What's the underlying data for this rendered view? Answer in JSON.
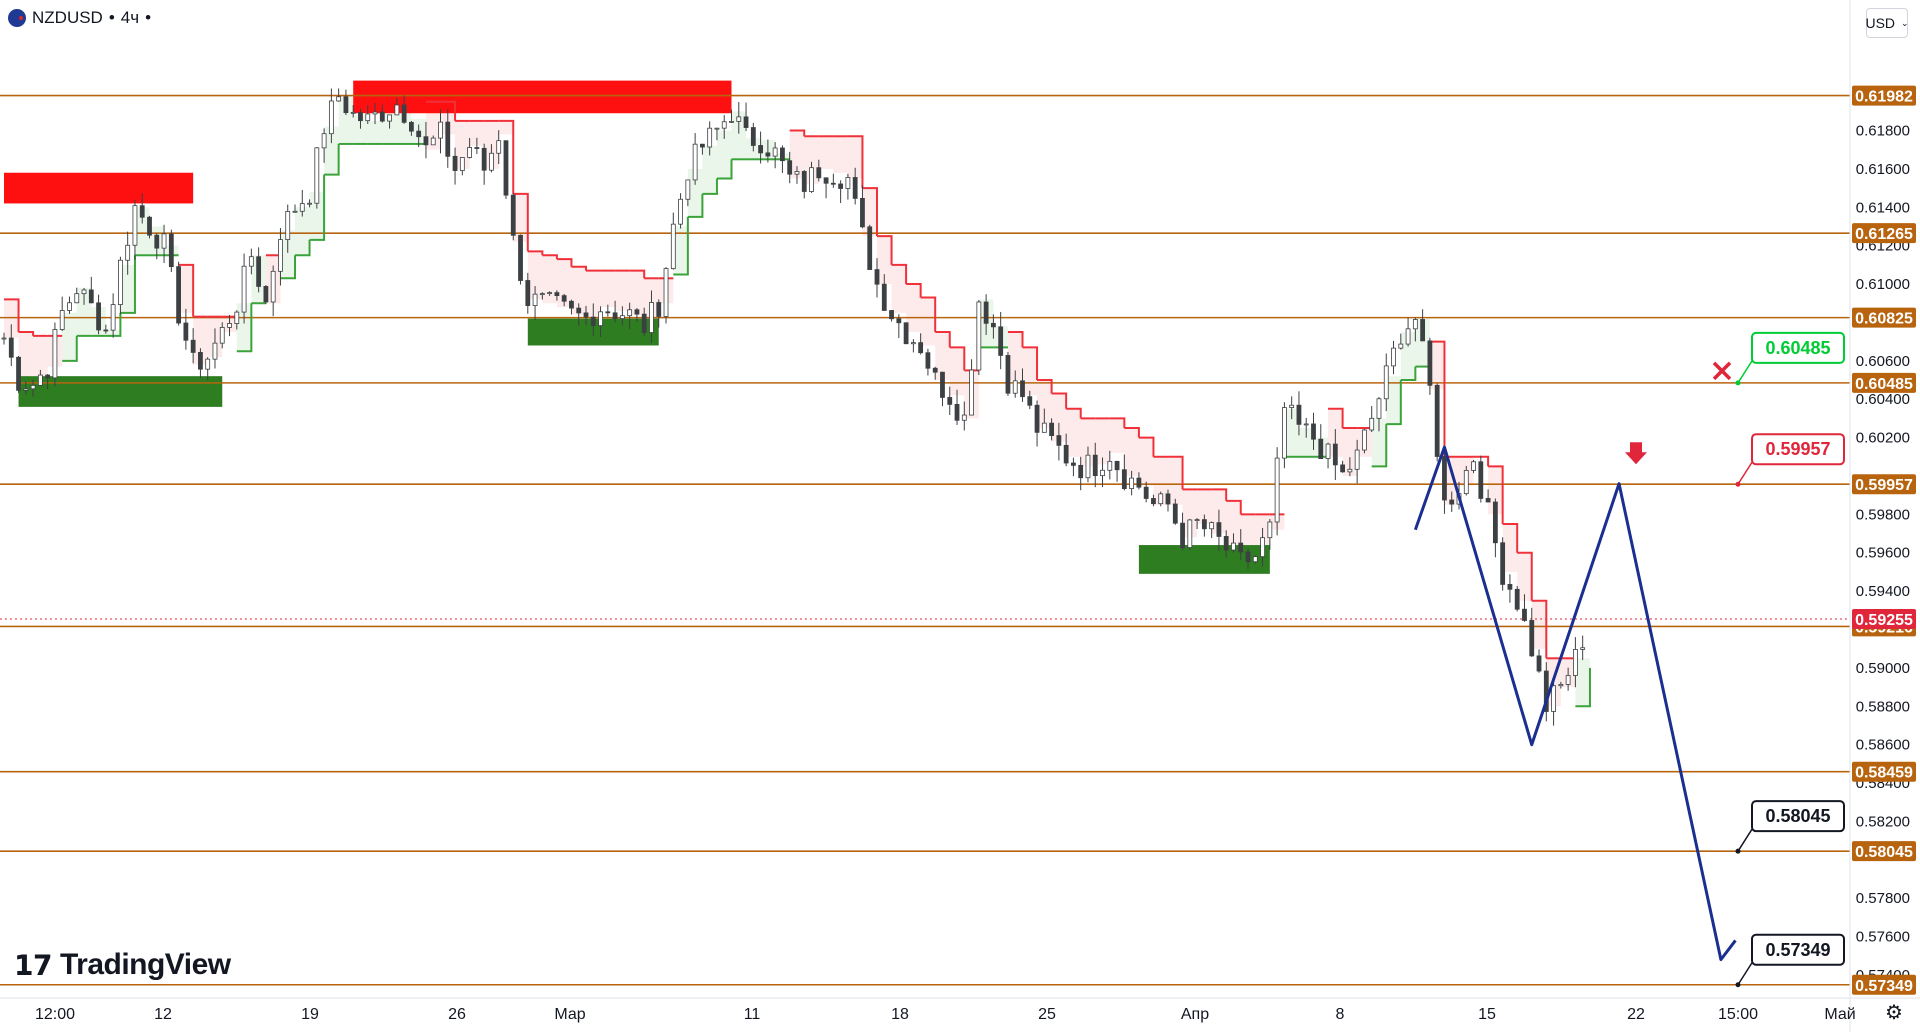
{
  "header": {
    "symbol": "NZDUSD",
    "interval": "4ч",
    "separator": "•"
  },
  "currency_button": "USD",
  "logo_text": "TradingView",
  "colors": {
    "level_line": "#b8640f",
    "level_tag": "#b8640f",
    "trail_up": "#3aa33a",
    "trail_down": "#f0313a",
    "supply_zone": "#ff1010",
    "demand_zone": "#2e7d21",
    "projection": "#1a2f8f",
    "current_price": "#e0263a"
  },
  "chart_data": {
    "type": "candlestick",
    "symbol": "NZDUSD",
    "timeframe": "4ч",
    "ylim": [
      0.5728,
      0.6248
    ],
    "y_ticks": [
      "0.61800",
      "0.61600",
      "0.61400",
      "0.61200",
      "0.61000",
      "0.60600",
      "0.60400",
      "0.60200",
      "0.59800",
      "0.59600",
      "0.59400",
      "0.59000",
      "0.58800",
      "0.58600",
      "0.58400",
      "0.58200",
      "0.57800",
      "0.57600",
      "0.57400"
    ],
    "x_ticks": [
      "12:00",
      "12",
      "19",
      "26",
      "Мар",
      "11",
      "18",
      "25",
      "Апр",
      "8",
      "15",
      "22",
      "15:00",
      "Май"
    ],
    "levels": [
      "0.61982",
      "0.61265",
      "0.60825",
      "0.60485",
      "0.59957",
      "0.59216",
      "0.58459",
      "0.58045",
      "0.57349"
    ],
    "current_price": "0.59255",
    "current_price_value": 0.59255,
    "close_path": [
      0.6072,
      0.605,
      0.6048,
      0.6057,
      0.6085,
      0.6098,
      0.6088,
      0.6076,
      0.611,
      0.614,
      0.613,
      0.612,
      0.6085,
      0.6058,
      0.6062,
      0.6075,
      0.609,
      0.6115,
      0.609,
      0.6128,
      0.614,
      0.6148,
      0.6182,
      0.6198,
      0.6188,
      0.6185,
      0.619,
      0.6194,
      0.6186,
      0.617,
      0.6178,
      0.616,
      0.6172,
      0.616,
      0.6178,
      0.6122,
      0.6092,
      0.609,
      0.6088,
      0.6084,
      0.6082,
      0.6088,
      0.6086,
      0.6084,
      0.6078,
      0.609,
      0.613,
      0.616,
      0.6172,
      0.618,
      0.619,
      0.6176,
      0.6175,
      0.6168,
      0.6155,
      0.6152,
      0.616,
      0.6158,
      0.6155,
      0.6125,
      0.61,
      0.6085,
      0.6075,
      0.6068,
      0.605,
      0.6042,
      0.603,
      0.6092,
      0.6078,
      0.605,
      0.6042,
      0.6025,
      0.6018,
      0.601,
      0.6005,
      0.6006,
      0.6012,
      0.6,
      0.5995,
      0.5985,
      0.5985,
      0.5968,
      0.5975,
      0.597,
      0.5962,
      0.5955,
      0.5958,
      0.5972,
      0.6035,
      0.6025,
      0.602,
      0.601,
      0.6,
      0.601,
      0.603,
      0.6052,
      0.6075,
      0.6082,
      0.6045,
      0.5985,
      0.5995,
      0.601,
      0.598,
      0.595,
      0.5935,
      0.591,
      0.588,
      0.589,
      0.5905,
      0.5925
    ],
    "supply_zones": [
      {
        "from_index": 0,
        "to_index": 13,
        "top": 0.6158,
        "bottom": 0.6142
      },
      {
        "from_index": 24,
        "to_index": 50,
        "top": 0.6206,
        "bottom": 0.6189
      }
    ],
    "demand_zones": [
      {
        "from_index": 1,
        "to_index": 15,
        "top": 0.6052,
        "bottom": 0.6036
      },
      {
        "from_index": 36,
        "to_index": 45,
        "top": 0.6082,
        "bottom": 0.6068
      },
      {
        "from_index": 78,
        "to_index": 87,
        "top": 0.5964,
        "bottom": 0.5949
      }
    ],
    "projection_path": [
      {
        "i": 97,
        "y": 0.5972
      },
      {
        "i": 99,
        "y": 0.6015
      },
      {
        "i": 105,
        "y": 0.586
      },
      {
        "i": 111,
        "y": 0.5996
      },
      {
        "i": 118,
        "y": 0.5748
      },
      {
        "i": 119,
        "y": 0.5758
      }
    ],
    "callouts": [
      {
        "value": "0.60485",
        "color": "#00cc33",
        "status": "invalidated"
      },
      {
        "value": "0.59957",
        "color": "#e0263a",
        "status": "entry"
      },
      {
        "value": "0.58045",
        "color": "#131722",
        "status": "target"
      },
      {
        "value": "0.57349",
        "color": "#131722",
        "status": "target"
      }
    ]
  }
}
